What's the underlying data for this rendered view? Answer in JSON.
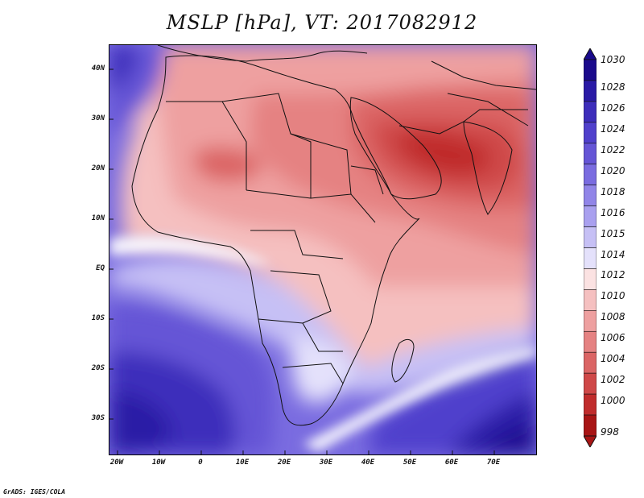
{
  "title": "MSLP [hPa], VT: 2017082912",
  "credit": "GrADS: IGES/COLA",
  "y_axis_labels": [
    "40N",
    "30N",
    "20N",
    "10N",
    "EQ",
    "10S",
    "20S",
    "30S"
  ],
  "x_axis_labels": [
    "20W",
    "10W",
    "0",
    "10E",
    "20E",
    "30E",
    "40E",
    "50E",
    "60E",
    "70E"
  ],
  "colorbar": {
    "labels": [
      "1030",
      "1028",
      "1026",
      "1024",
      "1022",
      "1020",
      "1018",
      "1016",
      "1015",
      "1014",
      "1012",
      "1010",
      "1008",
      "1006",
      "1004",
      "1002",
      "1000",
      "998"
    ],
    "colors": [
      "#1a0a8c",
      "#2a1aa6",
      "#3d2dbb",
      "#5040cc",
      "#6555d6",
      "#7a6ce0",
      "#9185e8",
      "#a9a0ef",
      "#c6c0f5",
      "#e4e1fb",
      "#fbe2e2",
      "#f5c0c0",
      "#eea0a0",
      "#e58282",
      "#db6565",
      "#cf4848",
      "#c02c2c",
      "#a81515"
    ]
  },
  "map": {
    "variable": "mean sea level pressure",
    "units": "hPa",
    "domain": {
      "lon": [
        -23,
        80
      ],
      "lat": [
        -37,
        45
      ]
    }
  }
}
